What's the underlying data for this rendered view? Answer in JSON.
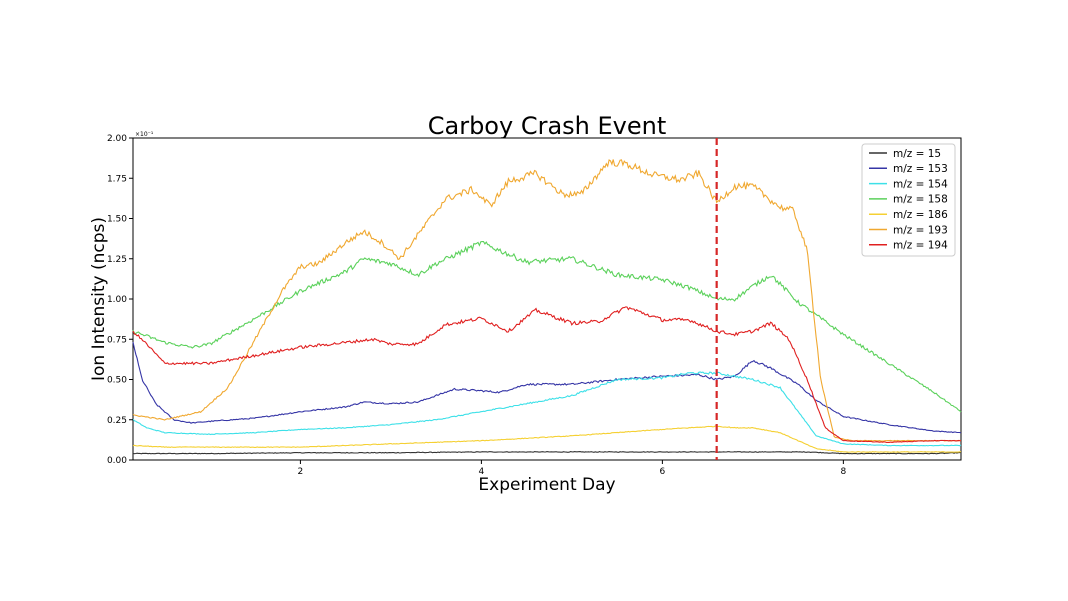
{
  "chart_data": {
    "type": "line",
    "title": "Carboy Crash Event",
    "xlabel": "Experiment Day",
    "ylabel": "Ion Intensity (ncps)",
    "y_exponent_label": "×10⁻¹",
    "xlim": [
      0.15,
      9.3
    ],
    "ylim": [
      0,
      2.0
    ],
    "xticks": [
      2,
      4,
      6,
      8
    ],
    "xtick_labels": [
      "2",
      "4",
      "6",
      "8"
    ],
    "yticks": [
      0,
      0.25,
      0.5,
      0.75,
      1.0,
      1.25,
      1.5,
      1.75,
      2.0
    ],
    "ytick_labels": [
      "0.00",
      "0.25",
      "0.50",
      "0.75",
      "1.00",
      "1.25",
      "1.50",
      "1.75",
      "2.00"
    ],
    "grid": false,
    "legend_position": "top-right",
    "vline": {
      "x": 6.6,
      "color": "#d62728",
      "style": "dashed"
    },
    "series": [
      {
        "name": "m/z = 15",
        "color": "#333333",
        "x": [
          0.15,
          1,
          2,
          3,
          4,
          5,
          6,
          6.6,
          7,
          7.6,
          8,
          9,
          9.3
        ],
        "y": [
          0.04,
          0.04,
          0.045,
          0.045,
          0.05,
          0.05,
          0.05,
          0.05,
          0.05,
          0.05,
          0.04,
          0.04,
          0.045
        ]
      },
      {
        "name": "m/z = 153",
        "color": "#3535a6",
        "x": [
          0.15,
          0.25,
          0.4,
          0.6,
          0.8,
          1,
          1.5,
          2,
          2.5,
          2.7,
          3,
          3.3,
          3.7,
          4,
          4.2,
          4.5,
          5,
          5.5,
          6,
          6.4,
          6.6,
          6.8,
          7,
          7.2,
          7.5,
          7.7,
          8,
          8.5,
          9,
          9.3
        ],
        "y": [
          0.73,
          0.5,
          0.35,
          0.25,
          0.23,
          0.24,
          0.26,
          0.3,
          0.33,
          0.36,
          0.35,
          0.36,
          0.44,
          0.43,
          0.42,
          0.47,
          0.47,
          0.5,
          0.52,
          0.53,
          0.5,
          0.52,
          0.62,
          0.57,
          0.47,
          0.37,
          0.27,
          0.22,
          0.18,
          0.17
        ]
      },
      {
        "name": "m/z = 154",
        "color": "#3de0e8",
        "x": [
          0.15,
          0.3,
          0.5,
          1,
          1.5,
          2,
          2.5,
          3,
          3.5,
          4,
          4.5,
          5,
          5.5,
          6,
          6.3,
          6.6,
          6.8,
          7,
          7.3,
          7.5,
          7.7,
          8,
          8.5,
          9,
          9.3
        ],
        "y": [
          0.25,
          0.2,
          0.17,
          0.16,
          0.17,
          0.19,
          0.2,
          0.22,
          0.25,
          0.3,
          0.35,
          0.4,
          0.5,
          0.51,
          0.54,
          0.54,
          0.52,
          0.5,
          0.45,
          0.3,
          0.15,
          0.1,
          0.09,
          0.09,
          0.09
        ]
      },
      {
        "name": "m/z = 158",
        "color": "#5bd15b",
        "x": [
          0.15,
          0.5,
          0.8,
          1,
          1.5,
          2,
          2.5,
          2.7,
          3,
          3.3,
          3.5,
          4,
          4.5,
          5,
          5.5,
          6,
          6.3,
          6.6,
          6.8,
          7,
          7.2,
          7.5,
          8,
          8.5,
          9,
          9.3
        ],
        "y": [
          0.8,
          0.73,
          0.7,
          0.72,
          0.88,
          1.05,
          1.17,
          1.25,
          1.22,
          1.15,
          1.22,
          1.35,
          1.23,
          1.25,
          1.15,
          1.12,
          1.07,
          1.0,
          1.0,
          1.08,
          1.15,
          0.98,
          0.78,
          0.6,
          0.42,
          0.3
        ]
      },
      {
        "name": "m/z = 186",
        "color": "#f5d033",
        "x": [
          0.15,
          0.5,
          1,
          2,
          3,
          4,
          5,
          5.5,
          6,
          6.3,
          6.6,
          6.8,
          7,
          7.3,
          7.5,
          7.7,
          8,
          9,
          9.3
        ],
        "y": [
          0.09,
          0.08,
          0.08,
          0.08,
          0.1,
          0.12,
          0.15,
          0.17,
          0.19,
          0.2,
          0.21,
          0.2,
          0.2,
          0.17,
          0.12,
          0.07,
          0.05,
          0.05,
          0.05
        ]
      },
      {
        "name": "m/z = 193",
        "color": "#f0a830",
        "x": [
          0.15,
          0.5,
          0.9,
          1.2,
          1.5,
          1.8,
          2,
          2.2,
          2.5,
          2.7,
          2.9,
          3.1,
          3.3,
          3.6,
          3.9,
          4.1,
          4.3,
          4.6,
          4.9,
          5.1,
          5.4,
          5.6,
          5.9,
          6.2,
          6.4,
          6.6,
          6.8,
          7,
          7.3,
          7.45,
          7.6,
          7.75,
          7.9,
          8.1,
          8.5,
          9,
          9.3
        ],
        "y": [
          0.28,
          0.25,
          0.3,
          0.45,
          0.75,
          1.05,
          1.2,
          1.22,
          1.35,
          1.42,
          1.35,
          1.25,
          1.4,
          1.62,
          1.68,
          1.58,
          1.73,
          1.78,
          1.65,
          1.65,
          1.85,
          1.84,
          1.77,
          1.74,
          1.78,
          1.6,
          1.7,
          1.7,
          1.57,
          1.55,
          1.3,
          0.5,
          0.14,
          0.12,
          0.12,
          0.12,
          0.12
        ]
      },
      {
        "name": "m/z = 194",
        "color": "#e02020",
        "x": [
          0.15,
          0.3,
          0.5,
          0.8,
          1,
          1.5,
          2,
          2.5,
          2.8,
          3,
          3.3,
          3.6,
          4,
          4.3,
          4.6,
          5,
          5.3,
          5.6,
          6,
          6.3,
          6.6,
          6.8,
          7,
          7.2,
          7.4,
          7.6,
          7.8,
          8,
          8.5,
          9,
          9.3
        ],
        "y": [
          0.8,
          0.72,
          0.6,
          0.6,
          0.6,
          0.65,
          0.7,
          0.73,
          0.75,
          0.72,
          0.72,
          0.84,
          0.88,
          0.8,
          0.93,
          0.85,
          0.86,
          0.95,
          0.87,
          0.87,
          0.8,
          0.78,
          0.8,
          0.85,
          0.75,
          0.5,
          0.2,
          0.12,
          0.11,
          0.12,
          0.12
        ]
      }
    ]
  }
}
